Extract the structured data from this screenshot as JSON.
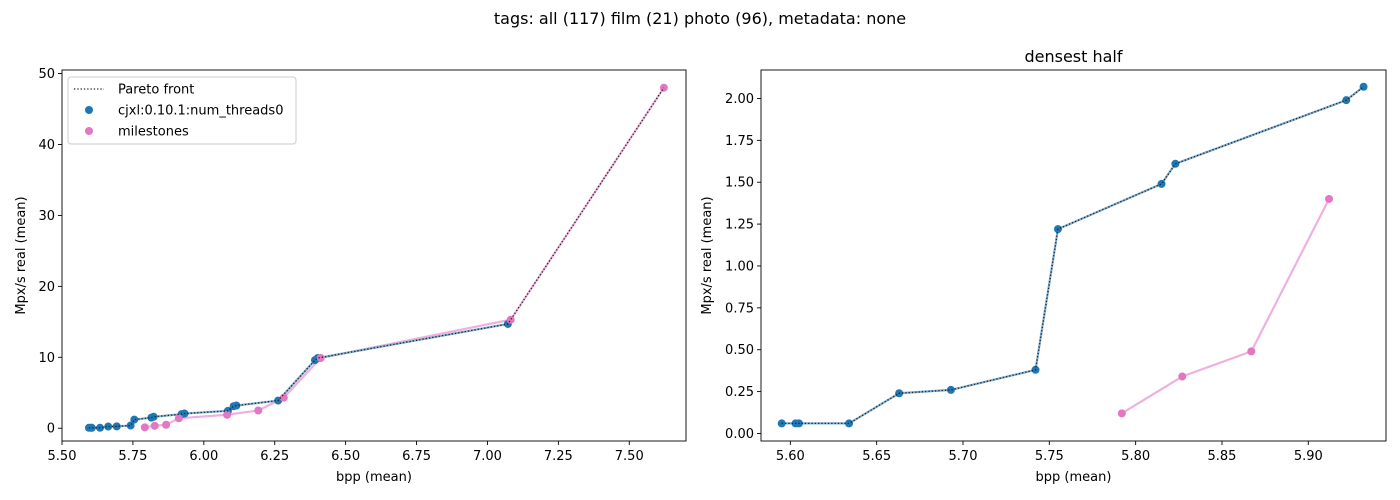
{
  "figure_title": "tags: all (117) film (21) photo (96), metadata: none",
  "colors": {
    "cjxl": "#1f77b4",
    "milestones": "#e377c2",
    "milestones_line": "#f0b0de",
    "cjxl_line": "#7fb0d4",
    "pareto": "#222222"
  },
  "chart_data": [
    {
      "type": "scatter",
      "title": "",
      "xlabel": "bpp (mean)",
      "ylabel": "Mpx/s real (mean)",
      "xlim": [
        5.5,
        7.7
      ],
      "ylim": [
        -1.8,
        50.5
      ],
      "xticks": [
        5.5,
        5.75,
        6.0,
        6.25,
        6.5,
        6.75,
        7.0,
        7.25,
        7.5
      ],
      "xtick_labels": [
        "5.50",
        "5.75",
        "6.00",
        "6.25",
        "6.50",
        "6.75",
        "7.00",
        "7.25",
        "7.50"
      ],
      "yticks": [
        0,
        10,
        20,
        30,
        40,
        50
      ],
      "ytick_labels": [
        "0",
        "10",
        "20",
        "30",
        "40",
        "50"
      ],
      "legend": {
        "position": "upper left",
        "entries": [
          "Pareto front",
          "cjxl:0.10.1:num_threads0",
          "milestones"
        ]
      },
      "series": [
        {
          "name": "cjxl:0.10.1:num_threads0",
          "x": [
            5.595,
            5.603,
            5.605,
            5.634,
            5.663,
            5.693,
            5.742,
            5.755,
            5.815,
            5.823,
            5.922,
            5.932,
            6.085,
            6.105,
            6.115,
            6.262,
            6.392,
            6.402,
            7.072
          ],
          "y": [
            0.06,
            0.06,
            0.06,
            0.06,
            0.24,
            0.26,
            0.38,
            1.22,
            1.49,
            1.61,
            1.99,
            2.07,
            2.45,
            3.1,
            3.2,
            3.9,
            9.6,
            9.9,
            14.7
          ]
        },
        {
          "name": "milestones",
          "x": [
            5.792,
            5.827,
            5.867,
            5.912,
            6.082,
            6.192,
            6.282,
            6.412,
            7.082,
            7.622
          ],
          "y": [
            0.12,
            0.34,
            0.49,
            1.4,
            1.9,
            2.5,
            4.3,
            9.9,
            15.3,
            48.0
          ]
        },
        {
          "name": "Pareto front",
          "x": [
            5.595,
            5.603,
            5.605,
            5.634,
            5.663,
            5.693,
            5.742,
            5.755,
            5.815,
            5.823,
            5.922,
            5.932,
            6.085,
            6.105,
            6.115,
            6.262,
            6.392,
            6.402,
            7.072,
            7.622
          ],
          "y": [
            0.06,
            0.06,
            0.06,
            0.06,
            0.24,
            0.26,
            0.38,
            1.22,
            1.49,
            1.61,
            1.99,
            2.07,
            2.45,
            3.1,
            3.2,
            3.9,
            9.6,
            9.9,
            14.7,
            48.0
          ]
        }
      ]
    },
    {
      "type": "scatter",
      "title": "densest half",
      "xlabel": "bpp (mean)",
      "ylabel": "Mpx/s real (mean)",
      "xlim": [
        5.583,
        5.945
      ],
      "ylim": [
        -0.045,
        2.17
      ],
      "xticks": [
        5.6,
        5.65,
        5.7,
        5.75,
        5.8,
        5.85,
        5.9
      ],
      "xtick_labels": [
        "5.60",
        "5.65",
        "5.70",
        "5.75",
        "5.80",
        "5.85",
        "5.90"
      ],
      "yticks": [
        0.0,
        0.25,
        0.5,
        0.75,
        1.0,
        1.25,
        1.5,
        1.75,
        2.0
      ],
      "ytick_labels": [
        "0.00",
        "0.25",
        "0.50",
        "0.75",
        "1.00",
        "1.25",
        "1.50",
        "1.75",
        "2.00"
      ],
      "series": [
        {
          "name": "cjxl:0.10.1:num_threads0",
          "x": [
            5.595,
            5.603,
            5.605,
            5.634,
            5.663,
            5.693,
            5.742,
            5.755,
            5.815,
            5.823,
            5.922,
            5.932
          ],
          "y": [
            0.06,
            0.06,
            0.06,
            0.06,
            0.24,
            0.26,
            0.38,
            1.22,
            1.49,
            1.61,
            1.99,
            2.07
          ]
        },
        {
          "name": "milestones",
          "x": [
            5.792,
            5.827,
            5.867,
            5.912
          ],
          "y": [
            0.12,
            0.34,
            0.49,
            1.4
          ]
        },
        {
          "name": "Pareto front",
          "x": [
            5.595,
            5.603,
            5.605,
            5.634,
            5.663,
            5.693,
            5.742,
            5.755,
            5.815,
            5.823,
            5.922,
            5.932
          ],
          "y": [
            0.06,
            0.06,
            0.06,
            0.06,
            0.24,
            0.26,
            0.38,
            1.22,
            1.49,
            1.61,
            1.99,
            2.07
          ]
        }
      ]
    }
  ]
}
